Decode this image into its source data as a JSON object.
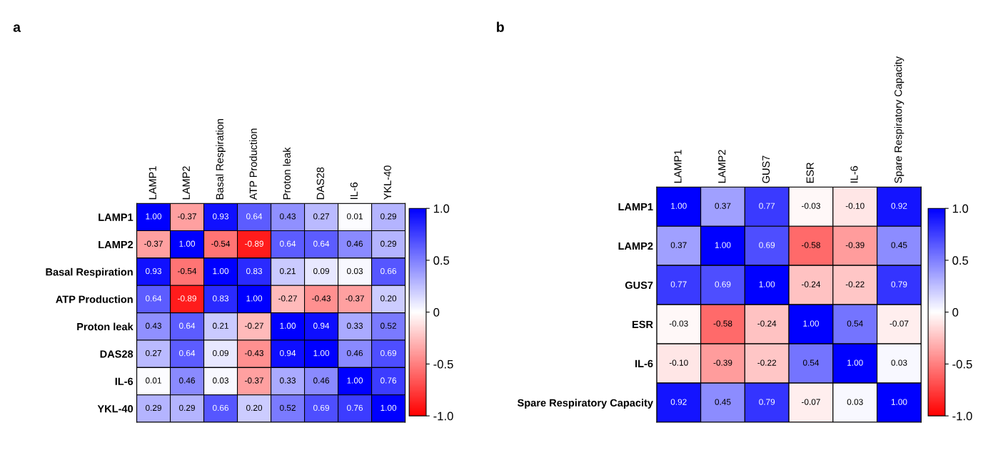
{
  "chart_data": [
    {
      "type": "heatmap",
      "title": "a",
      "categories": [
        "LAMP1",
        "LAMP2",
        "Basal Respiration",
        "ATP Production",
        "Proton leak",
        "DAS28",
        "IL-6",
        "YKL-40"
      ],
      "y_categories": [
        "LAMP1",
        "LAMP2",
        "Basal Respiration",
        "ATP Production",
        "Proton leak",
        "DAS28",
        "IL-6",
        "YKL-40"
      ],
      "cells": [
        [
          1.0,
          -0.37,
          0.93,
          0.64,
          0.43,
          0.27,
          0.01,
          0.29
        ],
        [
          -0.37,
          1.0,
          -0.54,
          -0.89,
          0.64,
          0.64,
          0.46,
          0.29
        ],
        [
          0.93,
          -0.54,
          1.0,
          0.83,
          0.21,
          0.09,
          0.03,
          0.66
        ],
        [
          0.64,
          -0.89,
          0.83,
          1.0,
          -0.27,
          -0.43,
          -0.37,
          0.2
        ],
        [
          0.43,
          0.64,
          0.21,
          -0.27,
          1.0,
          0.94,
          0.33,
          0.52
        ],
        [
          0.27,
          0.64,
          0.09,
          -0.43,
          0.94,
          1.0,
          0.46,
          0.69
        ],
        [
          0.01,
          0.46,
          0.03,
          -0.37,
          0.33,
          0.46,
          1.0,
          0.76
        ],
        [
          0.29,
          0.29,
          0.66,
          0.2,
          0.52,
          0.69,
          0.76,
          1.0
        ]
      ],
      "cell_labels": [
        [
          "1.00",
          "-0.37",
          "0.93",
          "0.64",
          "0.43",
          "0.27",
          "0.01",
          "0.29"
        ],
        [
          "-0.37",
          "1.00",
          "-0.54",
          "-0.89",
          "0.64",
          "0.64",
          "0.46",
          "0.29"
        ],
        [
          "0.93",
          "-0.54",
          "1.00",
          "0.83",
          "0.21",
          "0.09",
          "0.03",
          "0.66"
        ],
        [
          "0.64",
          "-0.89",
          "0.83",
          "1.00",
          "-0.27",
          "-0.43",
          "-0.37",
          "0.20"
        ],
        [
          "0.43",
          "0.64",
          "0.21",
          "-0.27",
          "1.00",
          "0.94",
          "0.33",
          "0.52"
        ],
        [
          "0.27",
          "0.64",
          "0.09",
          "-0.43",
          "0.94",
          "1.00",
          "0.46",
          "0.69"
        ],
        [
          "0.01",
          "0.46",
          "0.03",
          "-0.37",
          "0.33",
          "0.46",
          "1.00",
          "0.76"
        ],
        [
          "0.29",
          "0.29",
          "0.66",
          "0.20",
          "0.52",
          "0.69",
          "0.76",
          "1.00"
        ]
      ],
      "clim": [
        -1,
        1
      ],
      "cticks": [
        {
          "value": -1,
          "label": "-1.0"
        },
        {
          "value": -0.5,
          "label": "-0.5"
        },
        0,
        {
          "value": 0.5,
          "label": "0.5"
        },
        {
          "value": 1,
          "label": "1.0"
        }
      ]
    },
    {
      "type": "heatmap",
      "title": "b",
      "categories": [
        "LAMP1",
        "LAMP2",
        "GUS7",
        "ESR",
        "IL-6",
        "Spare Respiratory Capacity"
      ],
      "y_categories": [
        "LAMP1",
        "LAMP2",
        "GUS7",
        "ESR",
        "IL-6",
        "Spare Respiratory Capacity"
      ],
      "cells": [
        [
          1.0,
          0.37,
          0.77,
          -0.03,
          -0.1,
          0.92
        ],
        [
          0.37,
          1.0,
          0.69,
          -0.58,
          -0.39,
          0.45
        ],
        [
          0.77,
          0.69,
          1.0,
          -0.24,
          -0.22,
          0.79
        ],
        [
          -0.03,
          -0.58,
          -0.24,
          1.0,
          0.54,
          -0.07
        ],
        [
          -0.1,
          -0.39,
          -0.22,
          0.54,
          1.0,
          0.03
        ],
        [
          0.92,
          0.45,
          0.79,
          -0.07,
          0.03,
          1.0
        ]
      ],
      "cell_labels": [
        [
          "1.00",
          "0.37",
          "0.77",
          "-0.03",
          "-0.10",
          "0.92"
        ],
        [
          "0.37",
          "1.00",
          "0.69",
          "-0.58",
          "-0.39",
          "0.45"
        ],
        [
          "0.77",
          "0.69",
          "1.00",
          "-0.24",
          "-0.22",
          "0.79"
        ],
        [
          "-0.03",
          "-0.58",
          "-0.24",
          "1.00",
          "0.54",
          "-0.07"
        ],
        [
          "-0.10",
          "-0.39",
          "-0.22",
          "0.54",
          "1.00",
          "0.03"
        ],
        [
          "0.92",
          "0.45",
          "0.79",
          "-0.07",
          "0.03",
          "1.00"
        ]
      ],
      "clim": [
        -1,
        1
      ],
      "cticks": [
        {
          "value": -1,
          "label": "-1.0"
        },
        {
          "value": -0.5,
          "label": "-0.5"
        },
        0,
        {
          "value": 0.5,
          "label": "0.5"
        },
        {
          "value": 1,
          "label": "1.0"
        }
      ]
    }
  ]
}
